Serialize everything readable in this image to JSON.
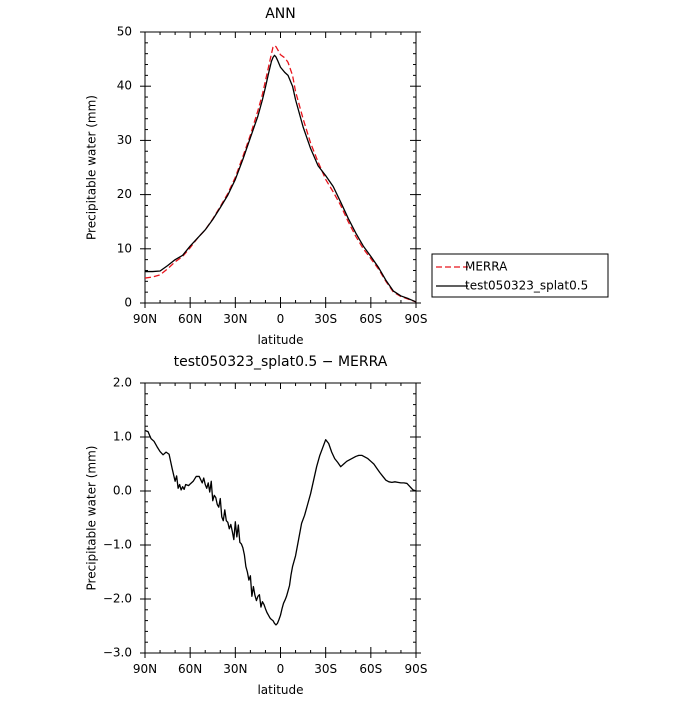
{
  "chart_data": [
    {
      "type": "line",
      "title": "ANN",
      "xlabel": "latitude",
      "ylabel": "Precipitable water (mm)",
      "xlim": [
        90,
        -90
      ],
      "ylim": [
        0,
        50
      ],
      "x_ticks": [
        90,
        60,
        30,
        0,
        -30,
        -60,
        -90
      ],
      "x_tick_labels": [
        "90N",
        "60N",
        "30N",
        "0",
        "30S",
        "60S",
        "90S"
      ],
      "y_ticks": [
        0,
        10,
        20,
        30,
        40,
        50
      ],
      "y_tick_labels": [
        "0",
        "10",
        "20",
        "30",
        "40",
        "50"
      ],
      "legend": "outside-right",
      "series": [
        {
          "name": "MERRA",
          "color": "#e8141c",
          "dash": "dashed",
          "points": [
            [
              90,
              4.6
            ],
            [
              85,
              4.8
            ],
            [
              80,
              5.2
            ],
            [
              75,
              6.3
            ],
            [
              70,
              7.6
            ],
            [
              65,
              8.6
            ],
            [
              60,
              10.2
            ],
            [
              55,
              12.0
            ],
            [
              50,
              13.5
            ],
            [
              45,
              15.5
            ],
            [
              40,
              17.8
            ],
            [
              35,
              20.2
            ],
            [
              30,
              23.2
            ],
            [
              25,
              27.0
            ],
            [
              20,
              31.0
            ],
            [
              15,
              35.5
            ],
            [
              12,
              38.5
            ],
            [
              10,
              41.0
            ],
            [
              8,
              43.5
            ],
            [
              6,
              46.0
            ],
            [
              5,
              47.2
            ],
            [
              4,
              47.5
            ],
            [
              3,
              47.3
            ],
            [
              2,
              46.8
            ],
            [
              0,
              45.8
            ],
            [
              -3,
              45.2
            ],
            [
              -5,
              44.4
            ],
            [
              -8,
              42.0
            ],
            [
              -10,
              39.0
            ],
            [
              -15,
              34.0
            ],
            [
              -20,
              29.5
            ],
            [
              -25,
              26.0
            ],
            [
              -30,
              22.8
            ],
            [
              -35,
              20.5
            ],
            [
              -40,
              18.0
            ],
            [
              -45,
              15.0
            ],
            [
              -50,
              12.3
            ],
            [
              -55,
              10.0
            ],
            [
              -60,
              8.2
            ],
            [
              -65,
              6.3
            ],
            [
              -70,
              4.0
            ],
            [
              -75,
              2.0
            ],
            [
              -80,
              1.2
            ],
            [
              -85,
              0.7
            ],
            [
              -90,
              0.2
            ]
          ]
        },
        {
          "name": "test050323_splat0.5",
          "color": "#000000",
          "dash": "solid",
          "points": [
            [
              90,
              5.8
            ],
            [
              85,
              5.8
            ],
            [
              80,
              5.9
            ],
            [
              75,
              6.9
            ],
            [
              70,
              8.0
            ],
            [
              65,
              8.8
            ],
            [
              60,
              10.5
            ],
            [
              55,
              12.0
            ],
            [
              50,
              13.5
            ],
            [
              45,
              15.4
            ],
            [
              40,
              17.6
            ],
            [
              35,
              19.9
            ],
            [
              30,
              22.8
            ],
            [
              25,
              26.5
            ],
            [
              20,
              30.5
            ],
            [
              15,
              34.5
            ],
            [
              12,
              37.5
            ],
            [
              10,
              39.8
            ],
            [
              8,
              42.3
            ],
            [
              6,
              44.6
            ],
            [
              5,
              45.3
            ],
            [
              4,
              45.7
            ],
            [
              3,
              45.4
            ],
            [
              2,
              44.8
            ],
            [
              0,
              43.5
            ],
            [
              -3,
              42.5
            ],
            [
              -5,
              42.0
            ],
            [
              -8,
              40.0
            ],
            [
              -10,
              37.5
            ],
            [
              -15,
              32.5
            ],
            [
              -20,
              28.5
            ],
            [
              -25,
              25.3
            ],
            [
              -30,
              23.5
            ],
            [
              -35,
              21.5
            ],
            [
              -40,
              18.6
            ],
            [
              -45,
              15.6
            ],
            [
              -50,
              12.9
            ],
            [
              -55,
              10.5
            ],
            [
              -60,
              8.6
            ],
            [
              -65,
              6.6
            ],
            [
              -70,
              4.2
            ],
            [
              -75,
              2.2
            ],
            [
              -80,
              1.3
            ],
            [
              -85,
              0.8
            ],
            [
              -90,
              0.2
            ]
          ]
        }
      ]
    },
    {
      "type": "line",
      "title": "test050323_splat0.5 − MERRA",
      "xlabel": "latitude",
      "ylabel": "Precipitable water (mm)",
      "xlim": [
        90,
        -90
      ],
      "ylim": [
        -3,
        2
      ],
      "x_ticks": [
        90,
        60,
        30,
        0,
        -30,
        -60,
        -90
      ],
      "x_tick_labels": [
        "90N",
        "60N",
        "30N",
        "0",
        "30S",
        "60S",
        "90S"
      ],
      "y_ticks": [
        -3,
        -2,
        -1,
        0,
        1,
        2
      ],
      "y_tick_labels": [
        "−3.0",
        "−2.0",
        "−1.0",
        "0.0",
        "1.0",
        "2.0"
      ],
      "series": [
        {
          "color": "#000000",
          "dash": "solid",
          "points": [
            [
              90,
              1.12
            ],
            [
              88,
              1.1
            ],
            [
              86,
              0.97
            ],
            [
              84,
              0.92
            ],
            [
              82,
              0.82
            ],
            [
              80,
              0.73
            ],
            [
              78,
              0.67
            ],
            [
              76,
              0.72
            ],
            [
              74,
              0.68
            ],
            [
              73,
              0.55
            ],
            [
              72,
              0.42
            ],
            [
              71,
              0.3
            ],
            [
              70,
              0.18
            ],
            [
              69,
              0.28
            ],
            [
              68,
              0.05
            ],
            [
              67,
              0.12
            ],
            [
              66,
              0.02
            ],
            [
              65,
              0.08
            ],
            [
              64,
              0.03
            ],
            [
              63,
              0.12
            ],
            [
              61,
              0.1
            ],
            [
              60,
              0.13
            ],
            [
              58,
              0.18
            ],
            [
              56,
              0.27
            ],
            [
              54,
              0.27
            ],
            [
              52,
              0.15
            ],
            [
              51,
              0.24
            ],
            [
              50,
              0.12
            ],
            [
              49,
              0.05
            ],
            [
              48,
              0.15
            ],
            [
              47,
              -0.02
            ],
            [
              46,
              0.18
            ],
            [
              45,
              -0.18
            ],
            [
              44,
              -0.08
            ],
            [
              43,
              -0.12
            ],
            [
              42,
              -0.25
            ],
            [
              41,
              -0.3
            ],
            [
              40,
              -0.14
            ],
            [
              39,
              -0.48
            ],
            [
              38,
              -0.55
            ],
            [
              37,
              -0.35
            ],
            [
              36,
              -0.55
            ],
            [
              35,
              -0.58
            ],
            [
              34,
              -0.7
            ],
            [
              33,
              -0.62
            ],
            [
              32,
              -0.75
            ],
            [
              31,
              -0.9
            ],
            [
              30,
              -0.57
            ],
            [
              29,
              -0.85
            ],
            [
              28,
              -0.63
            ],
            [
              27,
              -0.95
            ],
            [
              26,
              -0.98
            ],
            [
              25,
              -1.05
            ],
            [
              24,
              -1.18
            ],
            [
              23,
              -1.4
            ],
            [
              22,
              -1.5
            ],
            [
              21,
              -1.65
            ],
            [
              20,
              -1.57
            ],
            [
              19,
              -1.95
            ],
            [
              18,
              -1.77
            ],
            [
              17,
              -1.93
            ],
            [
              16,
              -2.03
            ],
            [
              15,
              -1.95
            ],
            [
              14,
              -1.92
            ],
            [
              13,
              -2.15
            ],
            [
              12,
              -2.05
            ],
            [
              11,
              -2.1
            ],
            [
              10,
              -2.18
            ],
            [
              9,
              -2.25
            ],
            [
              8,
              -2.3
            ],
            [
              7,
              -2.35
            ],
            [
              6,
              -2.38
            ],
            [
              5,
              -2.4
            ],
            [
              4,
              -2.45
            ],
            [
              3,
              -2.48
            ],
            [
              2,
              -2.45
            ],
            [
              1,
              -2.38
            ],
            [
              0,
              -2.3
            ],
            [
              -1,
              -2.18
            ],
            [
              -2,
              -2.08
            ],
            [
              -3,
              -2.02
            ],
            [
              -4,
              -1.95
            ],
            [
              -5,
              -1.85
            ],
            [
              -6,
              -1.75
            ],
            [
              -7,
              -1.55
            ],
            [
              -8,
              -1.4
            ],
            [
              -10,
              -1.2
            ],
            [
              -12,
              -0.9
            ],
            [
              -14,
              -0.6
            ],
            [
              -16,
              -0.45
            ],
            [
              -18,
              -0.25
            ],
            [
              -20,
              -0.05
            ],
            [
              -22,
              0.2
            ],
            [
              -24,
              0.45
            ],
            [
              -26,
              0.65
            ],
            [
              -28,
              0.8
            ],
            [
              -30,
              0.95
            ],
            [
              -32,
              0.88
            ],
            [
              -34,
              0.72
            ],
            [
              -36,
              0.6
            ],
            [
              -38,
              0.53
            ],
            [
              -40,
              0.45
            ],
            [
              -42,
              0.5
            ],
            [
              -44,
              0.55
            ],
            [
              -46,
              0.58
            ],
            [
              -48,
              0.61
            ],
            [
              -50,
              0.64
            ],
            [
              -52,
              0.66
            ],
            [
              -54,
              0.66
            ],
            [
              -56,
              0.63
            ],
            [
              -58,
              0.6
            ],
            [
              -60,
              0.55
            ],
            [
              -62,
              0.5
            ],
            [
              -64,
              0.42
            ],
            [
              -66,
              0.34
            ],
            [
              -68,
              0.27
            ],
            [
              -70,
              0.2
            ],
            [
              -72,
              0.17
            ],
            [
              -74,
              0.16
            ],
            [
              -76,
              0.17
            ],
            [
              -78,
              0.16
            ],
            [
              -80,
              0.15
            ],
            [
              -82,
              0.15
            ],
            [
              -84,
              0.14
            ],
            [
              -86,
              0.08
            ],
            [
              -88,
              0.02
            ],
            [
              -90,
              0.0
            ]
          ]
        }
      ]
    }
  ]
}
